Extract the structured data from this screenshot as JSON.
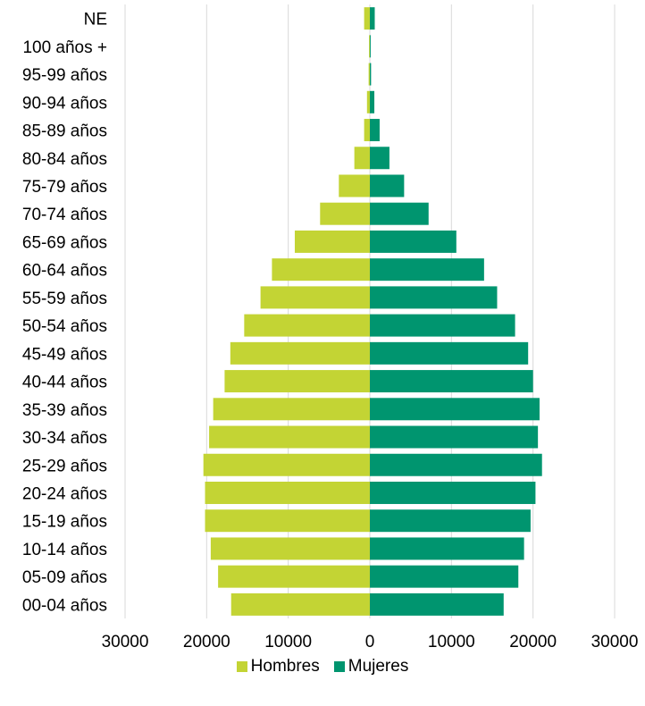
{
  "chart_data": {
    "type": "bar",
    "orientation": "horizontal",
    "layout": "population-pyramid",
    "categories": [
      "NE",
      "100 años +",
      "95-99 años",
      "90-94 años",
      "85-89 años",
      "80-84 años",
      "75-79 años",
      "70-74 años",
      "65-69 años",
      "60-64 años",
      "55-59 años",
      "50-54 años",
      "45-49 años",
      "40-44 años",
      "35-39 años",
      "30-34 años",
      "25-29 años",
      "20-24 años",
      "15-19 años",
      "10-14 años",
      "05-09 años",
      "00-04 años"
    ],
    "series": [
      {
        "name": "Hombres",
        "color": "#c3d434",
        "values": [
          700,
          100,
          150,
          350,
          700,
          1900,
          3800,
          6100,
          9200,
          12000,
          13400,
          15400,
          17100,
          17800,
          19200,
          19700,
          20400,
          20200,
          20200,
          19500,
          18600,
          17000
        ]
      },
      {
        "name": "Mujeres",
        "color": "#00956f",
        "values": [
          600,
          100,
          150,
          550,
          1200,
          2400,
          4200,
          7200,
          10600,
          14000,
          15600,
          17800,
          19400,
          20000,
          20800,
          20600,
          21100,
          20300,
          19700,
          18900,
          18200,
          16400
        ]
      }
    ],
    "xlim": [
      -30000,
      30000
    ],
    "xticks": [
      "30000",
      "20000",
      "10000",
      "0",
      "10000",
      "20000",
      "30000"
    ],
    "xtick_values": [
      -30000,
      -20000,
      -10000,
      0,
      10000,
      20000,
      30000
    ],
    "grid": "vertical",
    "legend_position": "bottom"
  },
  "legend": {
    "hombres": "Hombres",
    "mujeres": "Mujeres"
  },
  "colors": {
    "hombres": "#c3d434",
    "mujeres": "#00956f",
    "grid": "#d9d9d9"
  }
}
